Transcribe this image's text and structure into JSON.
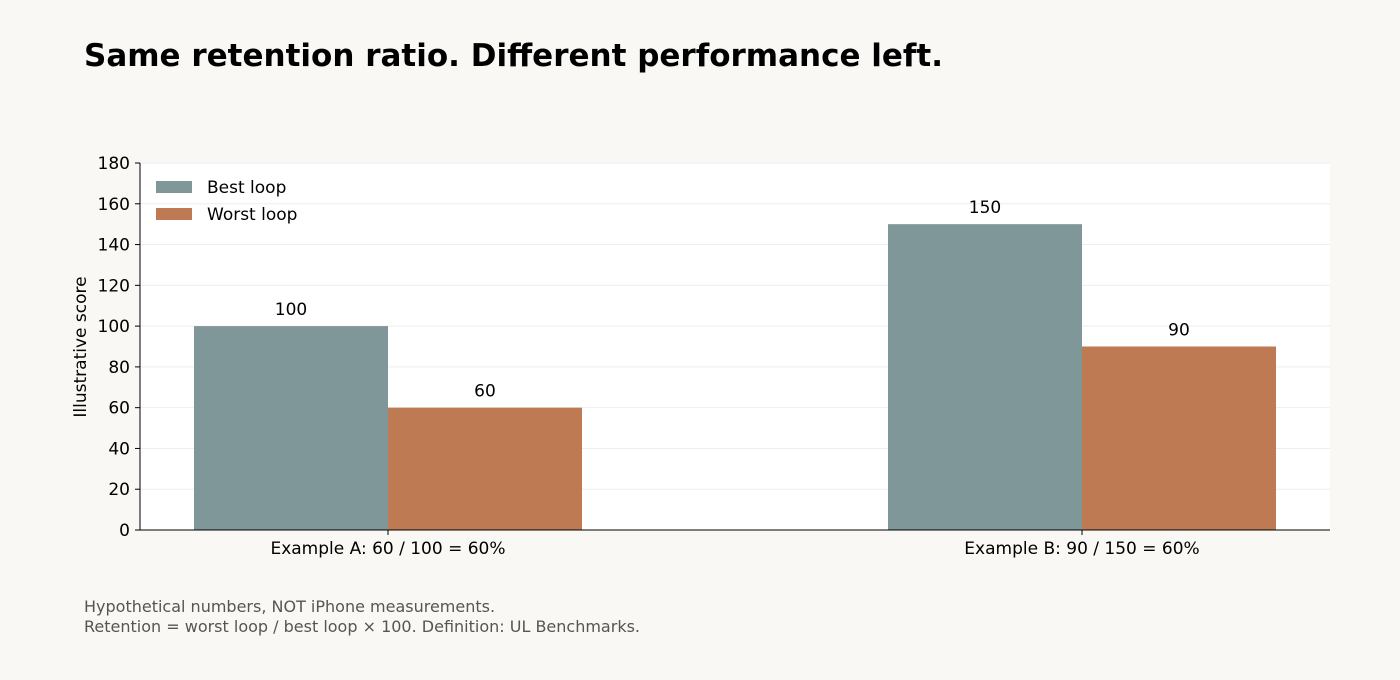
{
  "chart_data": {
    "type": "bar",
    "title": "Same retention ratio. Different performance left.",
    "xlabel": "",
    "ylabel": "Illustrative score",
    "categories": [
      "Example A: 60 / 100 = 60%",
      "Example B: 90 / 150 = 60%"
    ],
    "series": [
      {
        "name": "Best loop",
        "values": [
          100,
          150
        ],
        "color": "#809799"
      },
      {
        "name": "Worst loop",
        "values": [
          60,
          90
        ],
        "color": "#bd7a53"
      }
    ],
    "ylim": [
      0,
      180
    ],
    "yticks": [
      0,
      20,
      40,
      60,
      80,
      100,
      120,
      140,
      160,
      180
    ],
    "grid": true,
    "legend_position": "top-left",
    "data_labels": true
  },
  "footnotes": [
    "Hypothetical numbers, NOT iPhone measurements.",
    "Retention = worst loop / best loop × 100. Definition: UL Benchmarks."
  ]
}
